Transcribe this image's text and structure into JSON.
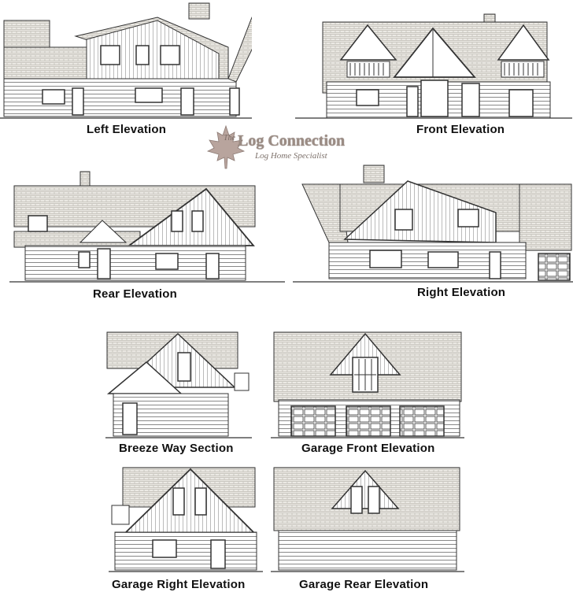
{
  "elevations": {
    "left": "Left Elevation",
    "front": "Front Elevation",
    "rear": "Rear Elevation",
    "right": "Right Elevation",
    "breezeway": "Breeze Way Section",
    "garage_front": "Garage Front Elevation",
    "garage_right": "Garage Right Elevation",
    "garage_rear": "Garage Rear Elevation"
  },
  "logo": {
    "the": "The",
    "name": "Log Connection",
    "tagline": "Log Home Specialist",
    "leaf_color": "#a3908a"
  },
  "colors": {
    "line": "#333333",
    "roof": "#e9e7e2",
    "wall": "#ffffff",
    "leaf": "#b8a49d"
  }
}
